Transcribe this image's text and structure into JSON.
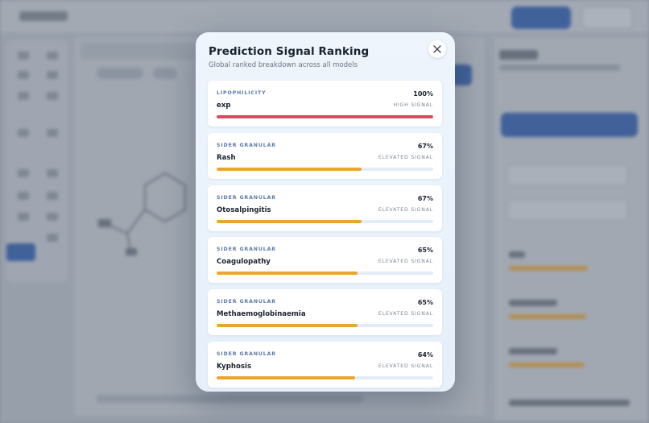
{
  "modal": {
    "title": "Prediction Signal Ranking",
    "subtitle": "Global ranked breakdown across all models",
    "close_icon": "close-icon"
  },
  "signals": [
    {
      "category": "LIPOPHILICITY",
      "name": "exp",
      "percent_label": "100%",
      "level": "HIGH SIGNAL",
      "fraction": 1.0,
      "color": "#dc4a5e"
    },
    {
      "category": "SIDER GRANULAR",
      "name": "Rash",
      "percent_label": "67%",
      "level": "ELEVATED SIGNAL",
      "fraction": 0.67,
      "color": "#eaa52d"
    },
    {
      "category": "SIDER GRANULAR",
      "name": "Otosalpingitis",
      "percent_label": "67%",
      "level": "ELEVATED SIGNAL",
      "fraction": 0.67,
      "color": "#eaa52d"
    },
    {
      "category": "SIDER GRANULAR",
      "name": "Coagulopathy",
      "percent_label": "65%",
      "level": "ELEVATED SIGNAL",
      "fraction": 0.65,
      "color": "#eaa52d"
    },
    {
      "category": "SIDER GRANULAR",
      "name": "Methaemoglobinaemia",
      "percent_label": "65%",
      "level": "ELEVATED SIGNAL",
      "fraction": 0.65,
      "color": "#eaa52d"
    },
    {
      "category": "SIDER GRANULAR",
      "name": "Kyphosis",
      "percent_label": "64%",
      "level": "ELEVATED SIGNAL",
      "fraction": 0.64,
      "color": "#eaa52d"
    }
  ]
}
